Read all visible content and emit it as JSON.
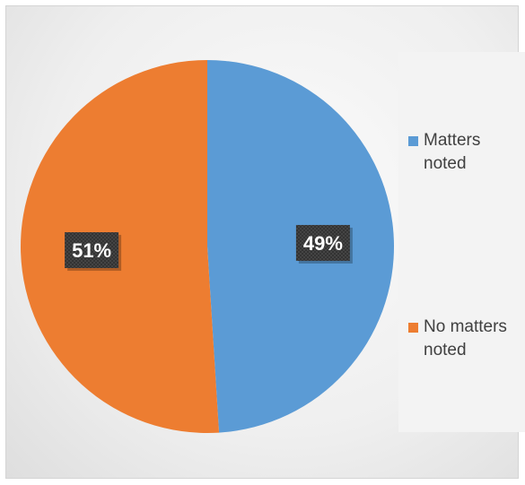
{
  "chart_data": {
    "type": "pie",
    "slices": [
      {
        "name": "Matters noted",
        "value": 49,
        "label": "49%",
        "color": "#5b9bd5"
      },
      {
        "name": "No matters noted",
        "value": 51,
        "label": "51%",
        "color": "#ed7d31"
      }
    ],
    "legend_position": "right"
  },
  "legend": {
    "item0": "Matters noted",
    "item1": "No matters noted"
  }
}
